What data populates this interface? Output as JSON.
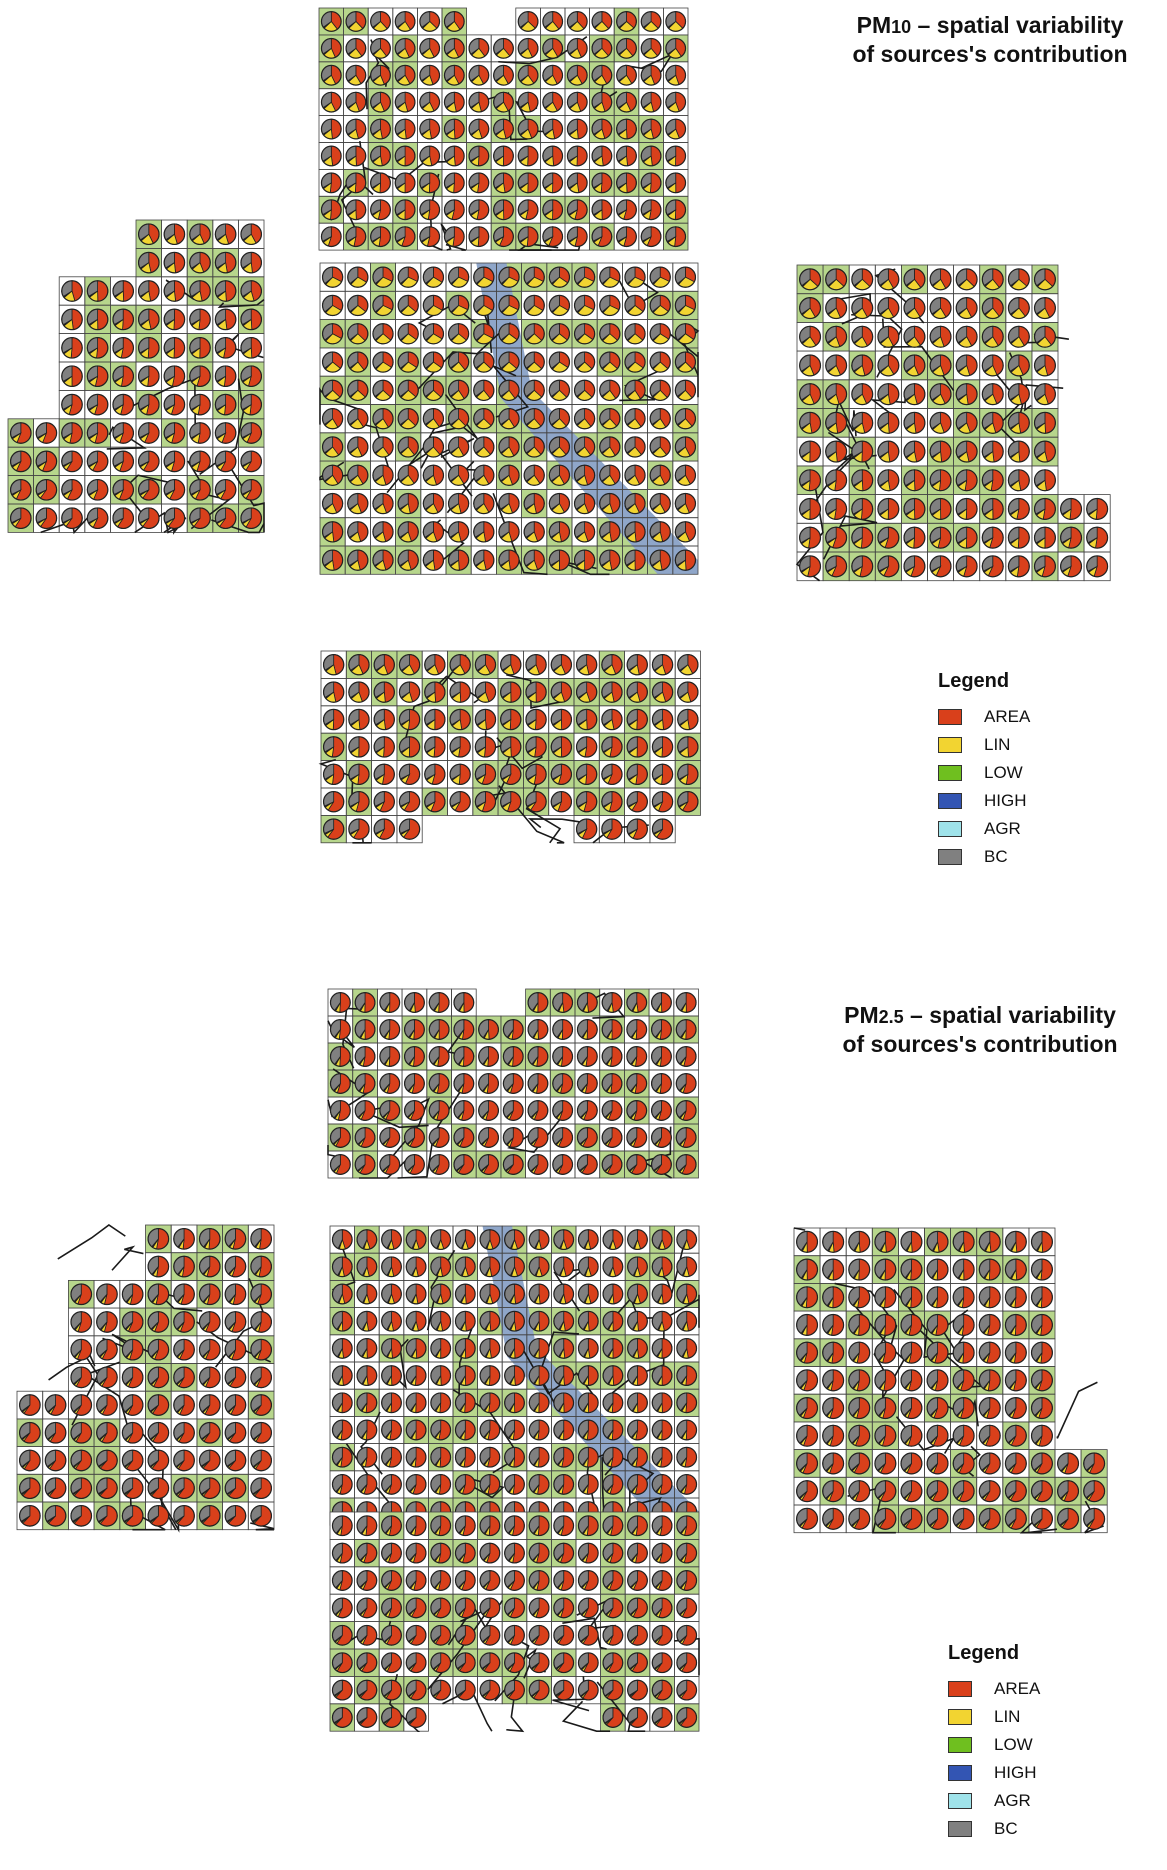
{
  "legend_colors": {
    "AREA": "#d9401b",
    "LIN": "#f2d431",
    "LOW": "#6fbf1f",
    "HIGH": "#3355b3",
    "AGR": "#9fe3ea",
    "BC": "#808080"
  },
  "background_colors": {
    "land": "#b7d68c",
    "river": "#8fa6c9",
    "road": "#1a1a1a"
  },
  "panels": [
    {
      "id": "pm10",
      "title_main": "PM",
      "title_sub": "10",
      "title_rest": " – spatial variability",
      "title_line2": "of sources's contribution",
      "legend": {
        "title": "Legend",
        "items": [
          {
            "label": "AREA",
            "key": "AREA"
          },
          {
            "label": "LIN",
            "key": "LIN"
          },
          {
            "label": "LOW",
            "key": "LOW"
          },
          {
            "label": "HIGH",
            "key": "HIGH"
          },
          {
            "label": "AGR",
            "key": "AGR"
          },
          {
            "label": "BC",
            "key": "BC"
          }
        ]
      },
      "composition": {
        "AREA": [
          0.32,
          0.6
        ],
        "LIN": [
          0.3,
          0.06
        ],
        "LOW": [
          0.01,
          0.01
        ],
        "HIGH": [
          0.005,
          0.005
        ],
        "AGR": [
          0.005,
          0.005
        ],
        "BC": [
          0.36,
          0.32
        ]
      }
    },
    {
      "id": "pm25",
      "title_main": "PM",
      "title_sub": "2.5",
      "title_rest": " – spatial variability",
      "title_line2": "of sources's contribution",
      "legend": {
        "title": "Legend",
        "items": [
          {
            "label": "AREA",
            "key": "AREA"
          },
          {
            "label": "LIN",
            "key": "LIN"
          },
          {
            "label": "LOW",
            "key": "LOW"
          },
          {
            "label": "HIGH",
            "key": "HIGH"
          },
          {
            "label": "AGR",
            "key": "AGR"
          },
          {
            "label": "BC",
            "key": "BC"
          }
        ]
      },
      "composition": {
        "AREA": [
          0.45,
          0.62
        ],
        "LIN": [
          0.1,
          0.02
        ],
        "LOW": [
          0.01,
          0.01
        ],
        "HIGH": [
          0.005,
          0.005
        ],
        "AGR": [
          0.005,
          0.005
        ],
        "BC": [
          0.43,
          0.34
        ]
      }
    }
  ]
}
